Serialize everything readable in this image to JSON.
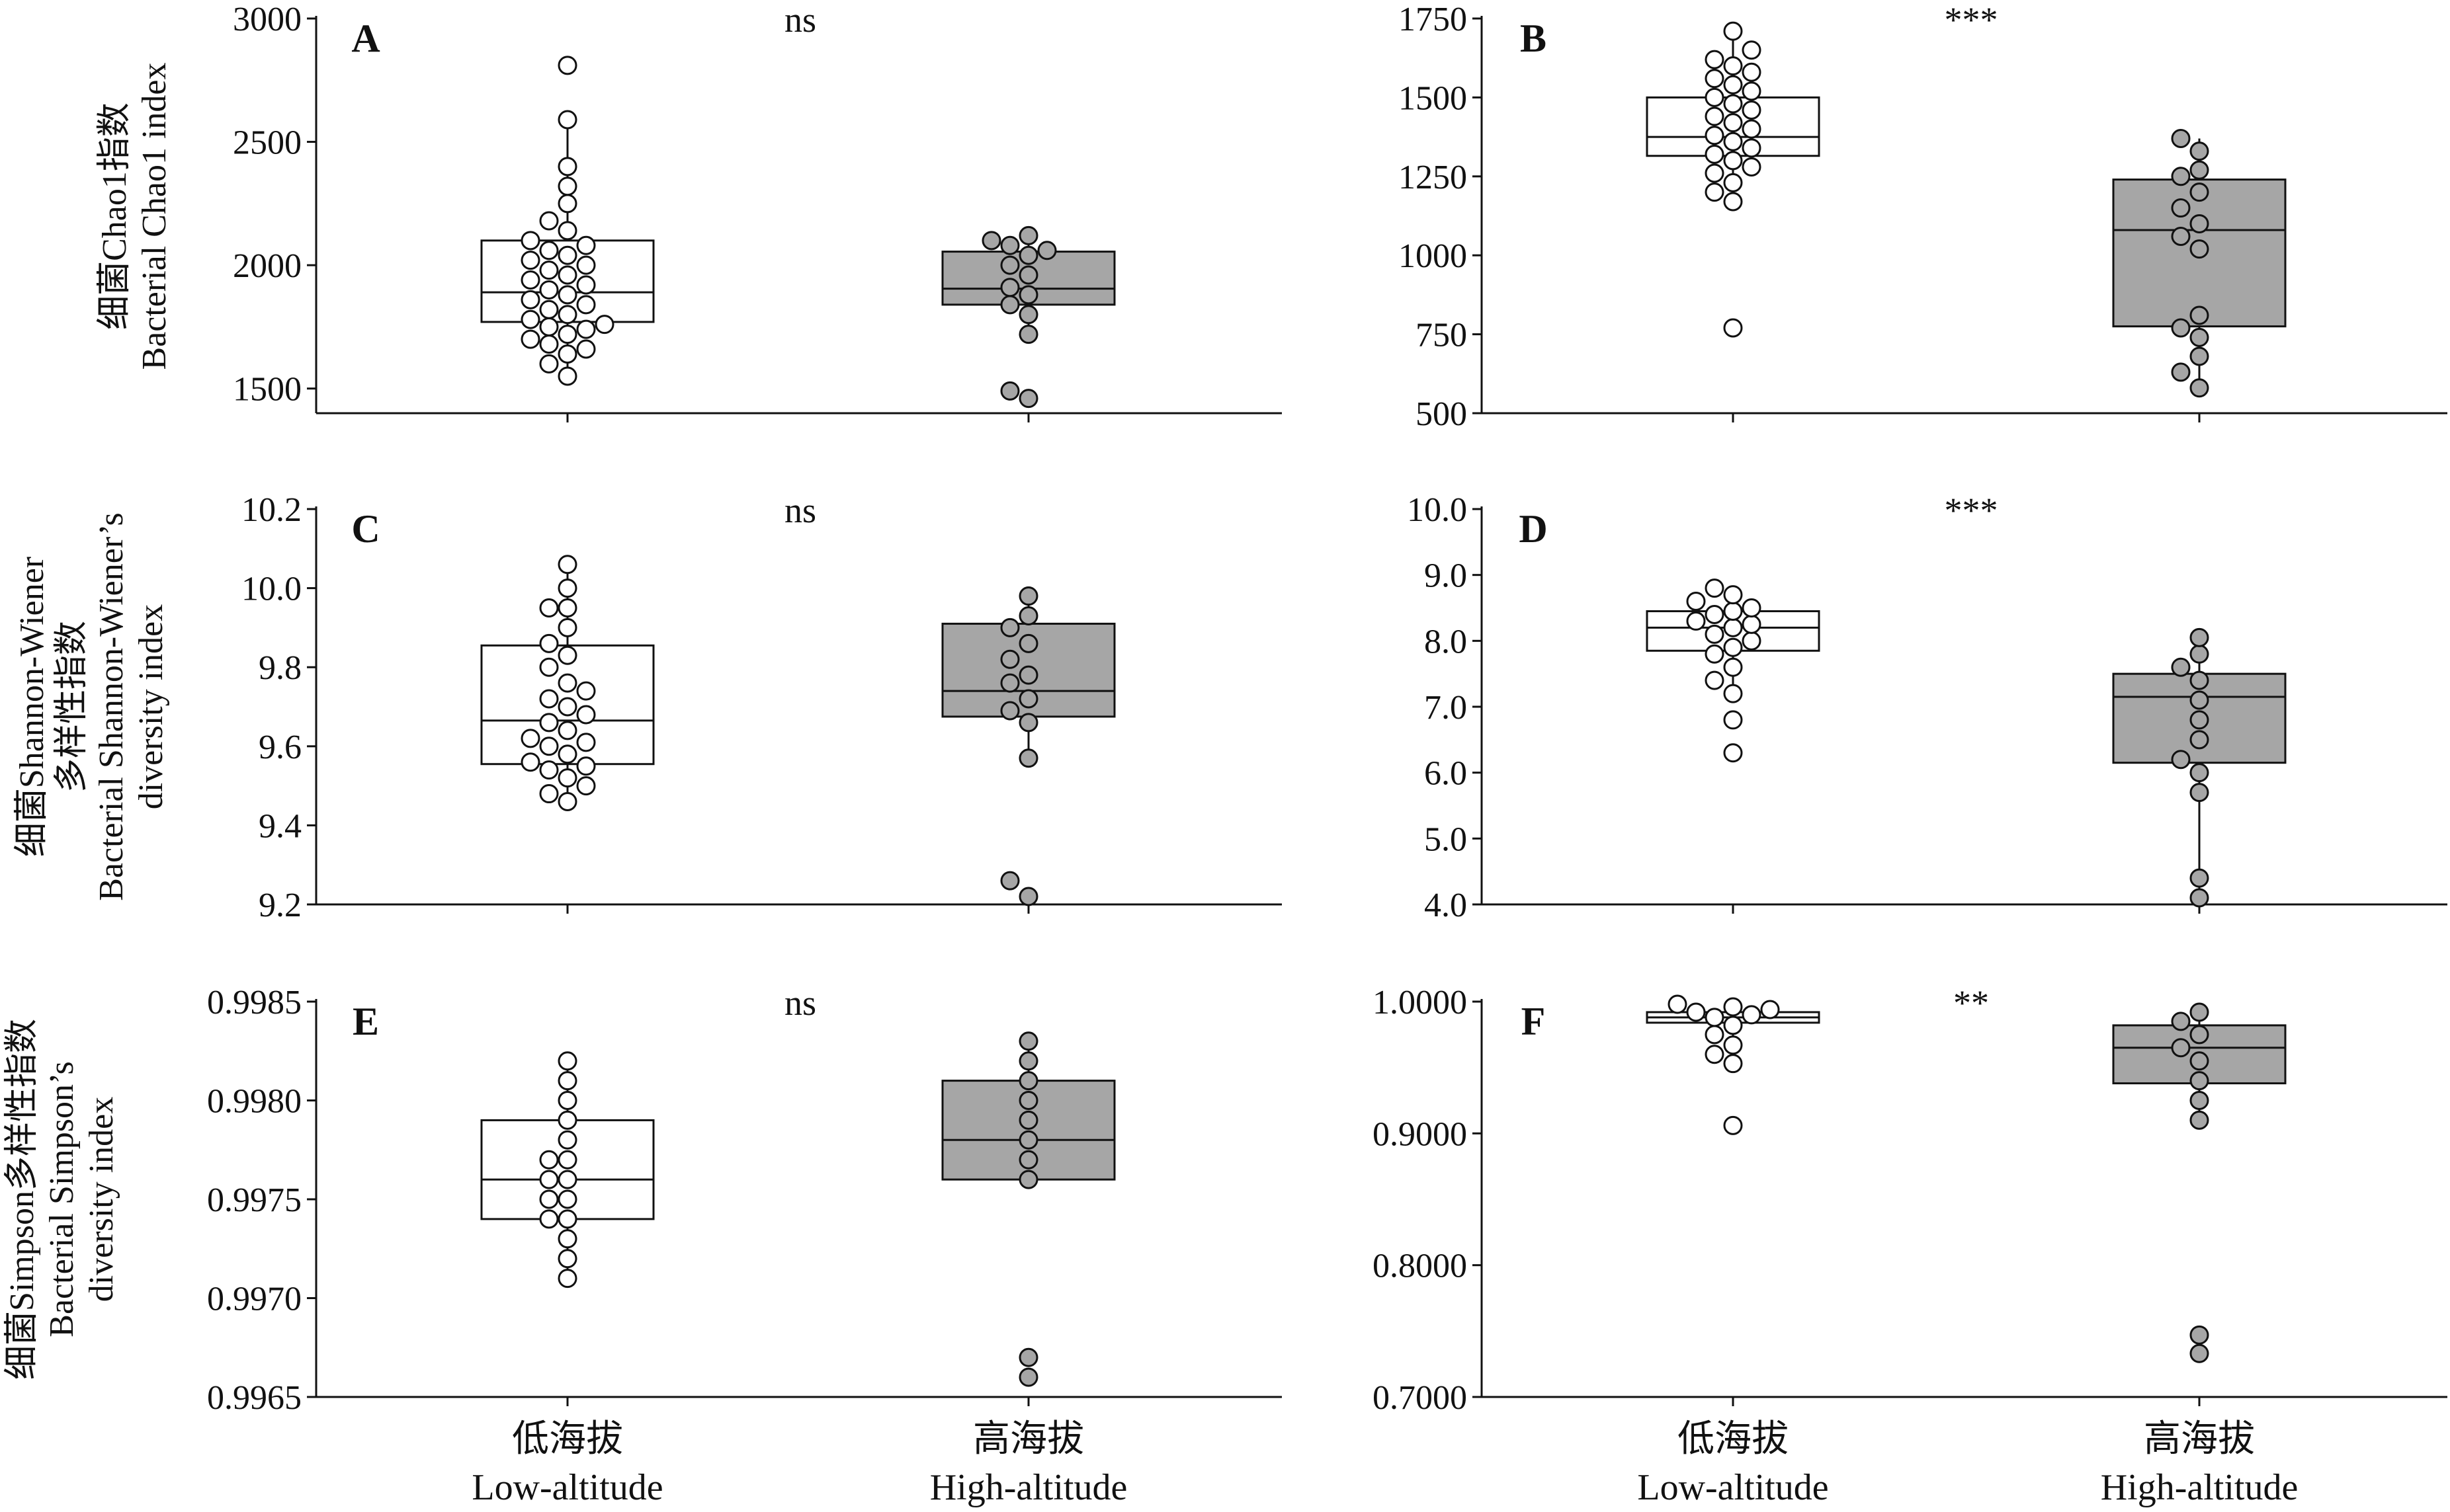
{
  "figure": {
    "categories": [
      {
        "zh": "低海拔",
        "en": "Low-altitude"
      },
      {
        "zh": "高海拔",
        "en": "High-altitude"
      }
    ],
    "row_titles": [
      [
        "细菌Chao1指数",
        "Bacterial Chao1 index"
      ],
      [
        "细菌Shannon-Wiener",
        "多样性指数",
        "Bacterial Shannon-Wiener’s",
        "diversity index"
      ],
      [
        "细菌Simpson多样性指数",
        "Bacterial Simpson’s",
        "diversity index"
      ]
    ],
    "colors": {
      "low_fill": "#ffffff",
      "high_fill": "#a6a6a6",
      "stroke": "#111111"
    }
  },
  "chart_data": [
    {
      "type": "box",
      "label": "A",
      "significance": "ns",
      "ylim": [
        1400,
        3000
      ],
      "ticks": [
        "1500",
        "2000",
        "2500",
        "3000"
      ],
      "groups": [
        {
          "category": "Low-altitude",
          "q1": 1770,
          "median": 1890,
          "q3": 2100,
          "whisker_low": 1550,
          "whisker_high": 2590,
          "points": [
            1550,
            1600,
            1640,
            1660,
            1680,
            1700,
            1720,
            1740,
            1750,
            1760,
            1780,
            1800,
            1820,
            1840,
            1860,
            1880,
            1900,
            1920,
            1940,
            1960,
            1980,
            2000,
            2020,
            2040,
            2060,
            2080,
            2100,
            2140,
            2180,
            2250,
            2320,
            2400,
            2590,
            2810
          ]
        },
        {
          "category": "High-altitude",
          "q1": 1840,
          "median": 1905,
          "q3": 2055,
          "whisker_low": 1720,
          "whisker_high": 2120,
          "points": [
            1460,
            1490,
            1720,
            1800,
            1840,
            1880,
            1910,
            1960,
            2000,
            2040,
            2060,
            2080,
            2100,
            2120
          ]
        }
      ]
    },
    {
      "type": "box",
      "label": "B",
      "significance": "***",
      "ylim": [
        500,
        1750
      ],
      "ticks": [
        "500",
        "750",
        "1000",
        "1250",
        "1500",
        "1750"
      ],
      "groups": [
        {
          "category": "Low-altitude",
          "q1": 1315,
          "median": 1375,
          "q3": 1500,
          "whisker_low": 1170,
          "whisker_high": 1710,
          "points": [
            770,
            1170,
            1200,
            1230,
            1260,
            1280,
            1300,
            1320,
            1340,
            1360,
            1380,
            1400,
            1420,
            1440,
            1460,
            1480,
            1500,
            1520,
            1540,
            1560,
            1580,
            1600,
            1620,
            1650,
            1710
          ]
        },
        {
          "category": "High-altitude",
          "q1": 775,
          "median": 1080,
          "q3": 1240,
          "whisker_low": 580,
          "whisker_high": 1370,
          "points": [
            580,
            630,
            680,
            740,
            770,
            810,
            1020,
            1060,
            1100,
            1150,
            1200,
            1250,
            1270,
            1330,
            1370
          ]
        }
      ]
    },
    {
      "type": "box",
      "label": "C",
      "significance": "ns",
      "ylim": [
        9.2,
        10.2
      ],
      "ticks": [
        "9.2",
        "9.4",
        "9.6",
        "9.8",
        "10.0",
        "10.2"
      ],
      "groups": [
        {
          "category": "Low-altitude",
          "q1": 9.555,
          "median": 9.665,
          "q3": 9.855,
          "whisker_low": 9.46,
          "whisker_high": 10.06,
          "points": [
            9.46,
            9.48,
            9.5,
            9.52,
            9.54,
            9.55,
            9.56,
            9.58,
            9.6,
            9.61,
            9.62,
            9.64,
            9.66,
            9.68,
            9.7,
            9.72,
            9.74,
            9.76,
            9.8,
            9.83,
            9.86,
            9.9,
            9.95,
            9.95,
            10.0,
            10.06
          ]
        },
        {
          "category": "High-altitude",
          "q1": 9.675,
          "median": 9.74,
          "q3": 9.91,
          "whisker_low": 9.57,
          "whisker_high": 9.98,
          "points": [
            9.22,
            9.26,
            9.57,
            9.66,
            9.69,
            9.72,
            9.76,
            9.78,
            9.82,
            9.86,
            9.9,
            9.93,
            9.98
          ]
        }
      ]
    },
    {
      "type": "box",
      "label": "D",
      "significance": "***",
      "ylim": [
        4.0,
        10.0
      ],
      "ticks": [
        "4.0",
        "5.0",
        "6.0",
        "7.0",
        "8.0",
        "9.0",
        "10.0"
      ],
      "groups": [
        {
          "category": "Low-altitude",
          "q1": 7.85,
          "median": 8.2,
          "q3": 8.45,
          "whisker_low": 7.2,
          "whisker_high": 8.8,
          "points": [
            6.3,
            6.8,
            7.2,
            7.4,
            7.6,
            7.8,
            7.9,
            8.0,
            8.1,
            8.2,
            8.25,
            8.3,
            8.4,
            8.45,
            8.5,
            8.6,
            8.7,
            8.8
          ]
        },
        {
          "category": "High-altitude",
          "q1": 6.15,
          "median": 7.15,
          "q3": 7.5,
          "whisker_low": 4.1,
          "whisker_high": 8.05,
          "points": [
            4.1,
            4.4,
            5.7,
            6.0,
            6.2,
            6.5,
            6.8,
            7.1,
            7.4,
            7.6,
            7.8,
            8.05
          ]
        }
      ]
    },
    {
      "type": "box",
      "label": "E",
      "significance": "ns",
      "ylim": [
        0.9965,
        0.9985
      ],
      "ticks": [
        "0.9965",
        "0.9970",
        "0.9975",
        "0.9980",
        "0.9985"
      ],
      "groups": [
        {
          "category": "Low-altitude",
          "q1": 0.9974,
          "median": 0.9976,
          "q3": 0.9979,
          "whisker_low": 0.9971,
          "whisker_high": 0.9982,
          "points": [
            0.9971,
            0.9972,
            0.9973,
            0.9974,
            0.9974,
            0.9975,
            0.9975,
            0.9976,
            0.9976,
            0.9977,
            0.9977,
            0.9978,
            0.9979,
            0.998,
            0.9981,
            0.9982
          ]
        },
        {
          "category": "High-altitude",
          "q1": 0.9976,
          "median": 0.9978,
          "q3": 0.9981,
          "whisker_low": 0.9976,
          "whisker_high": 0.9983,
          "points": [
            0.9966,
            0.9967,
            0.9976,
            0.9977,
            0.9978,
            0.9979,
            0.998,
            0.9981,
            0.9982,
            0.9983
          ]
        }
      ]
    },
    {
      "type": "box",
      "label": "F",
      "significance": "**",
      "ylim": [
        0.7,
        1.0
      ],
      "ticks": [
        "0.7000",
        "0.8000",
        "0.9000",
        "1.0000"
      ],
      "groups": [
        {
          "category": "Low-altitude",
          "q1": 0.984,
          "median": 0.988,
          "q3": 0.992,
          "whisker_low": 0.95,
          "whisker_high": 0.998,
          "points": [
            0.906,
            0.953,
            0.96,
            0.967,
            0.975,
            0.982,
            0.988,
            0.99,
            0.992,
            0.994,
            0.996,
            0.998
          ]
        },
        {
          "category": "High-altitude",
          "q1": 0.938,
          "median": 0.965,
          "q3": 0.982,
          "whisker_low": 0.91,
          "whisker_high": 0.992,
          "points": [
            0.733,
            0.747,
            0.91,
            0.925,
            0.94,
            0.955,
            0.965,
            0.975,
            0.985,
            0.992
          ]
        }
      ]
    }
  ]
}
